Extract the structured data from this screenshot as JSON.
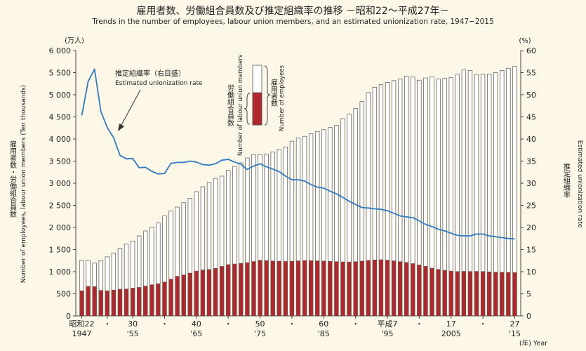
{
  "title": "雇用者数、労働組合員数及び推定組織率の推移 －昭和22～平成27年－",
  "subtitle": "Trends in the number of employees, labour union members, and an estimated unionization rate, 1947−2015",
  "colors": {
    "background": "#fdf7e7",
    "employees_bar": "#ffffff",
    "union_bar": "#b0282e",
    "rate_line": "#2f7ac0",
    "axis": "#444444"
  },
  "chart_data": {
    "type": "bar+line",
    "left_axis": {
      "unit": "(万人)",
      "label_ja": "雇用者数・労働組合員数",
      "label_en": "Number of employees, labour union members (Ten thousands)",
      "ylim": [
        0,
        6000
      ],
      "ticks": [
        0,
        500,
        1000,
        1500,
        2000,
        2500,
        3000,
        3500,
        4000,
        4500,
        5000,
        5500,
        6000
      ],
      "tick_labels": [
        "0",
        "500",
        "1 000",
        "1 500",
        "2 000",
        "2 500",
        "3 000",
        "3 500",
        "4 000",
        "4 500",
        "5 000",
        "5 500",
        "6 000"
      ]
    },
    "right_axis": {
      "unit": "(%)",
      "label_ja": "推定組織率",
      "label_en": "Estimated unionization rate",
      "ylim": [
        0,
        60
      ],
      "ticks": [
        0,
        5,
        10,
        15,
        20,
        25,
        30,
        35,
        40,
        45,
        50,
        55,
        60
      ],
      "tick_labels": [
        "0",
        "5",
        "10",
        "15",
        "20",
        "25",
        "30",
        "35",
        "40",
        "45",
        "50",
        "55",
        "60"
      ]
    },
    "x_axis": {
      "unit": "(年) Year",
      "tick_labels_top": [
        {
          "year": 1947,
          "label": "昭和22"
        },
        {
          "year": 1951,
          "label": "・"
        },
        {
          "year": 1955,
          "label": "30"
        },
        {
          "year": 1960,
          "label": "・"
        },
        {
          "year": 1965,
          "label": "40"
        },
        {
          "year": 1970,
          "label": "・"
        },
        {
          "year": 1975,
          "label": "50"
        },
        {
          "year": 1980,
          "label": "・"
        },
        {
          "year": 1985,
          "label": "60"
        },
        {
          "year": 1990,
          "label": "・"
        },
        {
          "year": 1995,
          "label": "平成7"
        },
        {
          "year": 2000,
          "label": "・"
        },
        {
          "year": 2005,
          "label": "17"
        },
        {
          "year": 2010,
          "label": "・"
        },
        {
          "year": 2015,
          "label": "27"
        }
      ],
      "tick_labels_bottom": [
        {
          "year": 1947,
          "label": "1947"
        },
        {
          "year": 1955,
          "label": "'55"
        },
        {
          "year": 1965,
          "label": "'65"
        },
        {
          "year": 1975,
          "label": "'75"
        },
        {
          "year": 1985,
          "label": "'85"
        },
        {
          "year": 1995,
          "label": "'95"
        },
        {
          "year": 2005,
          "label": "2005"
        },
        {
          "year": 2015,
          "label": "'15"
        }
      ]
    },
    "years": [
      1947,
      1948,
      1949,
      1950,
      1951,
      1952,
      1953,
      1954,
      1955,
      1956,
      1957,
      1958,
      1959,
      1960,
      1961,
      1962,
      1963,
      1964,
      1965,
      1966,
      1967,
      1968,
      1969,
      1970,
      1971,
      1972,
      1973,
      1974,
      1975,
      1976,
      1977,
      1978,
      1979,
      1980,
      1981,
      1982,
      1983,
      1984,
      1985,
      1986,
      1987,
      1988,
      1989,
      1990,
      1991,
      1992,
      1993,
      1994,
      1995,
      1996,
      1997,
      1998,
      1999,
      2000,
      2001,
      2002,
      2003,
      2004,
      2005,
      2006,
      2007,
      2008,
      2009,
      2010,
      2011,
      2012,
      2013,
      2014,
      2015
    ],
    "series": [
      {
        "name": "雇用者数",
        "name_en": "Number of employees",
        "type": "bar",
        "values": [
          1256,
          1257,
          1193,
          1251,
          1336,
          1421,
          1531,
          1622,
          1691,
          1810,
          1920,
          2010,
          2100,
          2260,
          2370,
          2460,
          2560,
          2660,
          2810,
          2920,
          3020,
          3110,
          3160,
          3290,
          3380,
          3460,
          3570,
          3650,
          3650,
          3660,
          3710,
          3760,
          3820,
          3950,
          4020,
          4060,
          4120,
          4170,
          4210,
          4260,
          4310,
          4460,
          4560,
          4690,
          4850,
          5050,
          5170,
          5230,
          5280,
          5320,
          5360,
          5420,
          5400,
          5330,
          5380,
          5410,
          5360,
          5370,
          5390,
          5470,
          5560,
          5550,
          5460,
          5470,
          5470,
          5500,
          5550,
          5600,
          5640
        ]
      },
      {
        "name": "労働組合員数",
        "name_en": "Number of labour union members",
        "type": "bar",
        "values": [
          569,
          668,
          665,
          577,
          569,
          584,
          604,
          610,
          629,
          645,
          676,
          705,
          729,
          766,
          832,
          897,
          927,
          968,
          1015,
          1040,
          1050,
          1075,
          1120,
          1160,
          1175,
          1190,
          1205,
          1230,
          1259,
          1250,
          1243,
          1238,
          1231,
          1237,
          1245,
          1253,
          1252,
          1246,
          1242,
          1234,
          1227,
          1222,
          1220,
          1226,
          1240,
          1254,
          1266,
          1270,
          1261,
          1245,
          1228,
          1210,
          1183,
          1154,
          1121,
          1080,
          1053,
          1031,
          1014,
          1004,
          1008,
          1006,
          1008,
          1005,
          996,
          989,
          987,
          985,
          982
        ]
      },
      {
        "name": "推定組織率（右目盛）",
        "name_en": "Estimated unionization rate",
        "type": "line",
        "axis": "right",
        "values": [
          45.3,
          53.0,
          55.8,
          46.2,
          42.6,
          40.3,
          36.3,
          35.5,
          35.6,
          33.5,
          33.6,
          32.7,
          32.1,
          32.2,
          34.5,
          34.7,
          34.7,
          35.0,
          34.8,
          34.2,
          34.1,
          34.4,
          35.2,
          35.4,
          34.8,
          34.3,
          33.1,
          33.9,
          34.4,
          33.7,
          33.2,
          32.6,
          31.6,
          30.8,
          30.8,
          30.5,
          29.7,
          29.1,
          28.9,
          28.2,
          27.6,
          26.8,
          25.9,
          25.2,
          24.5,
          24.4,
          24.2,
          24.1,
          23.8,
          23.2,
          22.6,
          22.4,
          22.2,
          21.5,
          20.7,
          20.2,
          19.6,
          19.2,
          18.7,
          18.2,
          18.1,
          18.1,
          18.5,
          18.5,
          18.1,
          17.9,
          17.7,
          17.5,
          17.4
        ]
      }
    ],
    "annotation": {
      "label_ja": "推定組織率（右目盛）",
      "label_en": "Estimated unionization rate"
    },
    "legend": {
      "employees_ja": "雇用者数",
      "union_ja": "労働組合員数",
      "union_en": "Number of labour union members",
      "employees_en": "Number of employees"
    }
  }
}
